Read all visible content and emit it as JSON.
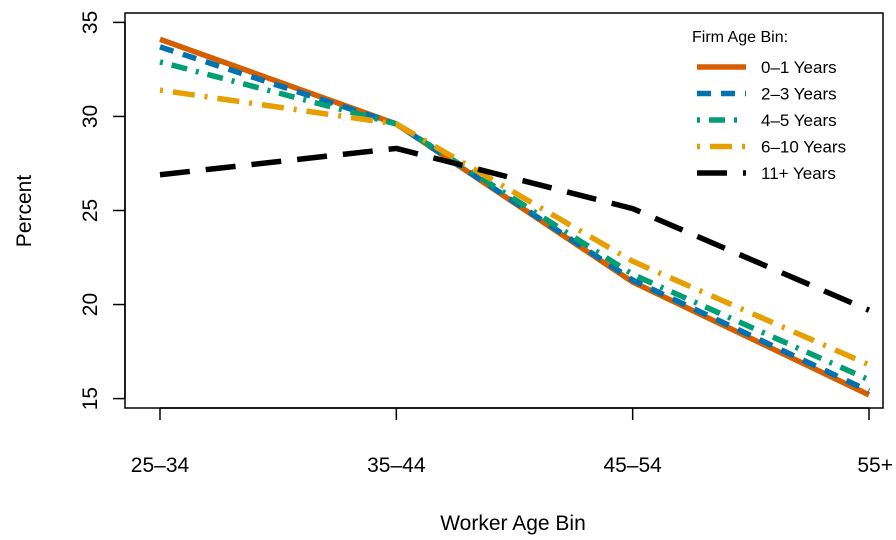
{
  "chart_data": {
    "type": "line",
    "xlabel": "Worker Age Bin",
    "ylabel": "Percent",
    "categories": [
      "25–34",
      "35–44",
      "45–54",
      "55+"
    ],
    "ylim": [
      14.5,
      35.5
    ],
    "yticks": [
      15,
      20,
      25,
      30,
      35
    ],
    "grid": false,
    "legend": {
      "title": "Firm Age Bin:",
      "position": "top-right"
    },
    "series": [
      {
        "name": "0–1 Years",
        "values": [
          34.1,
          29.6,
          21.2,
          15.2
        ],
        "color": "#D55E00",
        "dash": "solid"
      },
      {
        "name": "2–3 Years",
        "values": [
          33.7,
          29.6,
          21.3,
          15.4
        ],
        "color": "#0072B2",
        "dash": "dashed"
      },
      {
        "name": "4–5 Years",
        "values": [
          32.9,
          29.6,
          21.6,
          16.0
        ],
        "color": "#009E73",
        "dash": "dotdash"
      },
      {
        "name": "6–10 Years",
        "values": [
          31.4,
          29.6,
          22.3,
          16.8
        ],
        "color": "#E69F00",
        "dash": "dotlongdash"
      },
      {
        "name": "11+ Years",
        "values": [
          26.9,
          28.3,
          25.1,
          19.7
        ],
        "color": "#000000",
        "dash": "longdash"
      }
    ]
  }
}
